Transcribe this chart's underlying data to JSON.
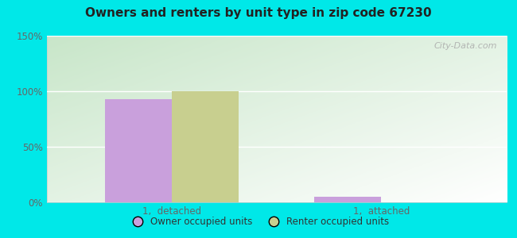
{
  "title": "Owners and renters by unit type in zip code 67230",
  "categories": [
    "1,  detached",
    "1,  attached"
  ],
  "owner_values": [
    93,
    5
  ],
  "renter_values": [
    100,
    0
  ],
  "owner_color": "#c9a0dc",
  "renter_color": "#c8cf8f",
  "ylim": [
    0,
    150
  ],
  "yticks": [
    0,
    50,
    100,
    150
  ],
  "yticklabels": [
    "0%",
    "50%",
    "100%",
    "150%"
  ],
  "outer_color": "#00e8e8",
  "bar_width": 0.32,
  "legend_labels": [
    "Owner occupied units",
    "Renter occupied units"
  ],
  "watermark": "City-Data.com",
  "plot_bg_color": "#e8f5e9",
  "gradient_top_color": "#b2dfdb",
  "gradient_bottom_color": "#f1f8f1"
}
